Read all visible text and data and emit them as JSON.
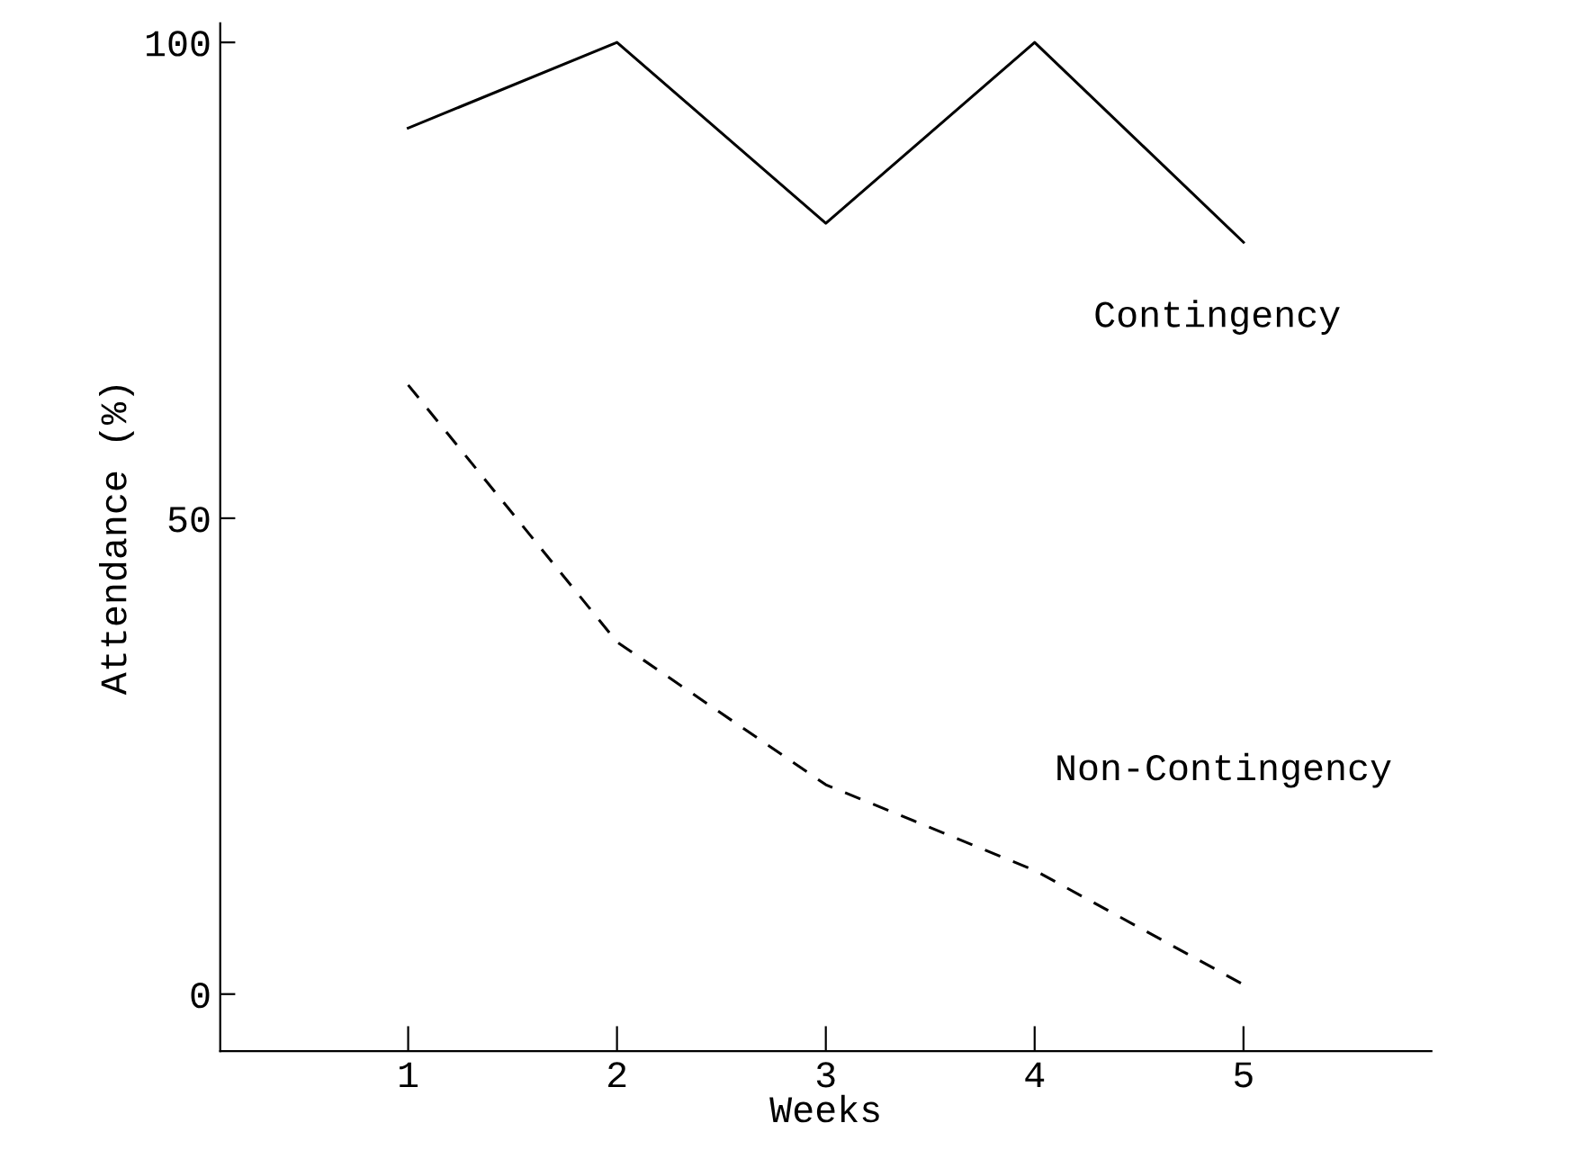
{
  "chart_data": {
    "type": "line",
    "xlabel": "Weeks",
    "ylabel": "Attendance (%)",
    "x": [
      1,
      2,
      3,
      4,
      5
    ],
    "xlim": [
      0.1,
      5.9
    ],
    "xticks": [
      1,
      2,
      3,
      4,
      5
    ],
    "ylim": [
      -6,
      102
    ],
    "yticks": [
      0,
      50,
      100
    ],
    "grid": false,
    "legend": false,
    "marker": "none",
    "series": [
      {
        "name": "Contingency",
        "color": "#000000",
        "line_style": "solid",
        "values": [
          91,
          100,
          81,
          100,
          79
        ]
      },
      {
        "name": "Non-Contingency",
        "color": "#000000",
        "line_style": "dashed",
        "values": [
          64,
          37,
          22,
          13,
          1
        ]
      }
    ]
  }
}
